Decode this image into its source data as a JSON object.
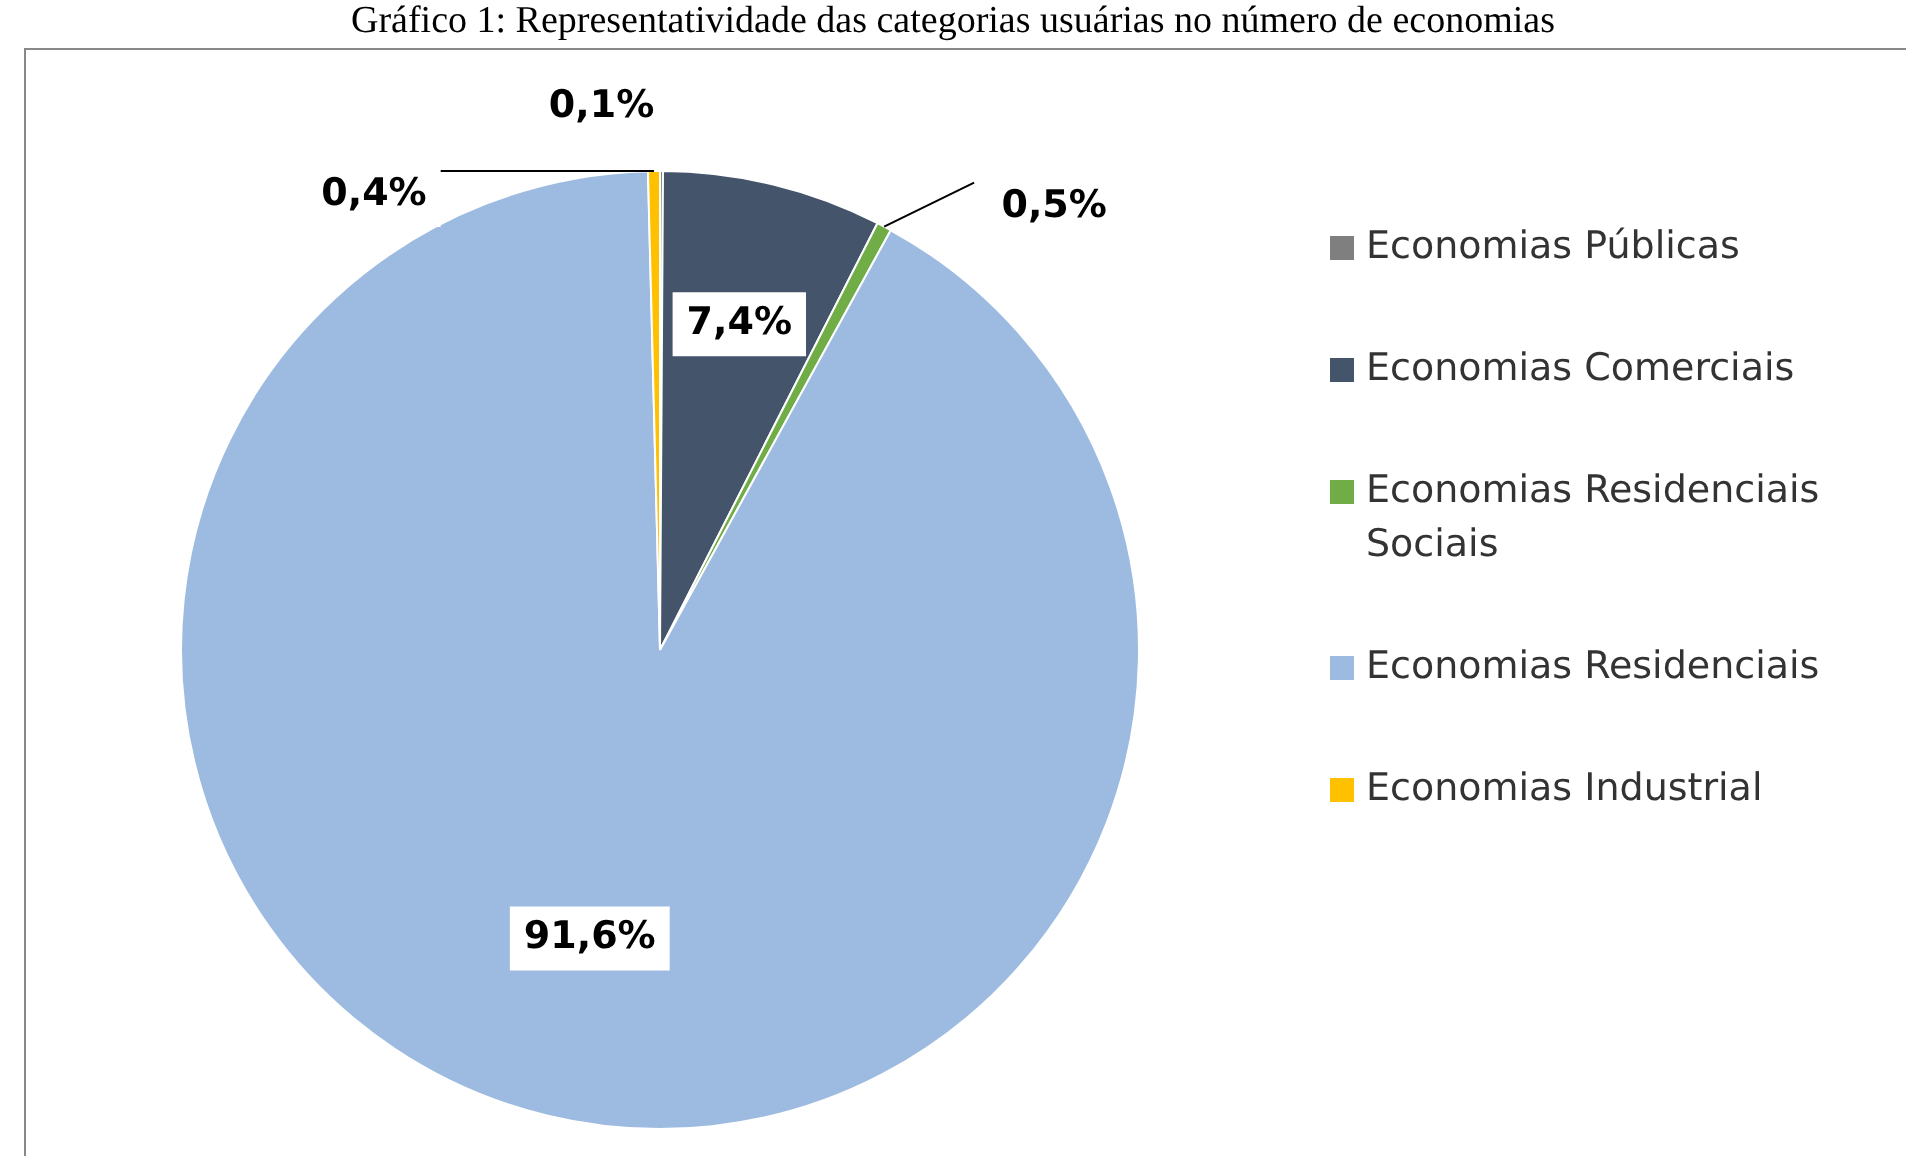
{
  "chart_data": {
    "type": "pie",
    "title": "Gráfico 1: Representatividade das categorias usuárias no número de economias",
    "categories": [
      "Economias Públicas",
      "Economias Comerciais",
      "Economias Residenciais Sociais",
      "Economias Residenciais",
      "Economias Industrial"
    ],
    "values": [
      0.1,
      7.4,
      0.5,
      91.6,
      0.4
    ],
    "colors": [
      "#7f7f7f",
      "#44546a",
      "#70ad47",
      "#9dbbe0",
      "#ffc000"
    ],
    "value_labels": [
      "0,1%",
      "7,4%",
      "0,5%",
      "91,6%",
      "0,4%"
    ],
    "legend": "right"
  }
}
